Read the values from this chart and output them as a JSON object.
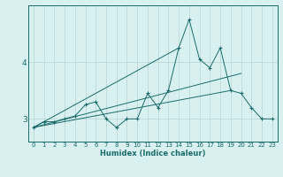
{
  "xlabel": "Humidex (Indice chaleur)",
  "ylabel": "",
  "background_color": "#d8f0f0",
  "line_color": "#1a6b6b",
  "grid_color": "#b8d4d4",
  "xlim": [
    -0.5,
    23.5
  ],
  "ylim": [
    2.6,
    5.0
  ],
  "yticks": [
    3,
    4
  ],
  "xticks": [
    0,
    1,
    2,
    3,
    4,
    5,
    6,
    7,
    8,
    9,
    10,
    11,
    12,
    13,
    14,
    15,
    16,
    17,
    18,
    19,
    20,
    21,
    22,
    23
  ],
  "series": {
    "main": {
      "x": [
        0,
        1,
        2,
        3,
        4,
        5,
        6,
        7,
        8,
        9,
        10,
        11,
        12,
        13,
        14,
        15,
        16,
        17,
        18,
        19,
        20,
        21,
        22,
        23
      ],
      "y": [
        2.85,
        2.95,
        2.95,
        3.0,
        3.05,
        3.25,
        3.3,
        3.0,
        2.85,
        3.0,
        3.0,
        3.45,
        3.2,
        3.5,
        4.25,
        4.75,
        4.05,
        3.9,
        4.25,
        3.5,
        3.45,
        3.2,
        3.0,
        3.0
      ]
    },
    "line1": {
      "x": [
        0,
        20
      ],
      "y": [
        2.85,
        3.8
      ]
    },
    "line2": {
      "x": [
        0,
        14
      ],
      "y": [
        2.85,
        4.25
      ]
    },
    "line3": {
      "x": [
        0,
        19
      ],
      "y": [
        2.85,
        3.5
      ]
    }
  },
  "tick_fontsize": 5.0,
  "xlabel_fontsize": 6.0,
  "ylabel_fontsize": 6.5,
  "linewidth": 0.7,
  "markersize": 3.0
}
